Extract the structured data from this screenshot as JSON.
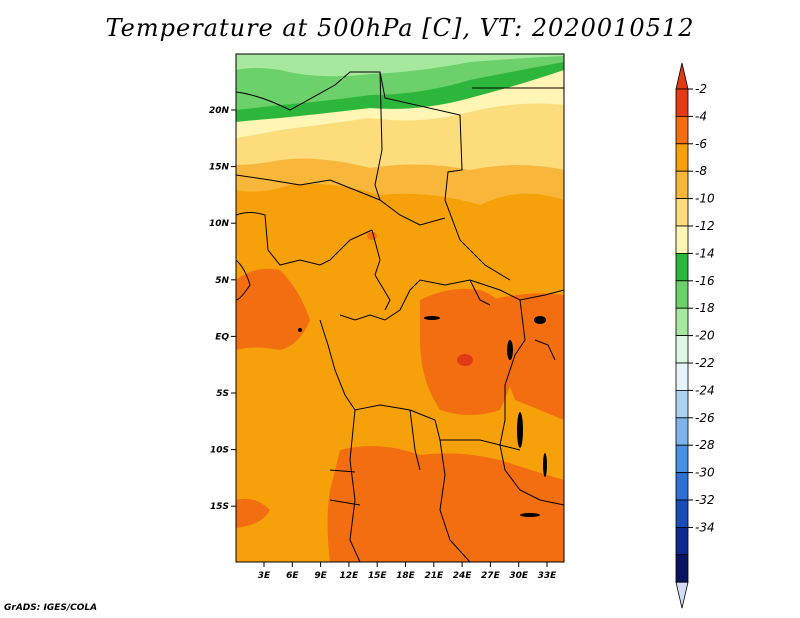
{
  "title": "Temperature at 500hPa [C], VT: 2020010512",
  "footer": "GrADS: IGES/COLA",
  "lat_labels": [
    "20N",
    "15N",
    "10N",
    "5N",
    "EQ",
    "5S",
    "10S",
    "15S"
  ],
  "lon_labels": [
    "3E",
    "6E",
    "9E",
    "12E",
    "15E",
    "18E",
    "21E",
    "24E",
    "27E",
    "30E",
    "33E"
  ],
  "colorbar": {
    "labels": [
      "-2",
      "-4",
      "-6",
      "-8",
      "-10",
      "-12",
      "-14",
      "-16",
      "-18",
      "-20",
      "-22",
      "-24",
      "-26",
      "-28",
      "-30",
      "-32",
      "-34"
    ],
    "colors": [
      "#e13a14",
      "#f36e11",
      "#f7a10a",
      "#f8b63a",
      "#fddc7c",
      "#fff5b4",
      "#2db63c",
      "#6cd16a",
      "#a6e99e",
      "#ddf7e2",
      "#e8f4fb",
      "#aed3f2",
      "#7db3ea",
      "#4a90e0",
      "#2e6fd4",
      "#1a4cb7",
      "#0f2a8e",
      "#0a1460"
    ],
    "end_colors": {
      "top": "#e13a14",
      "bottom": "#d6dcf5"
    }
  }
}
